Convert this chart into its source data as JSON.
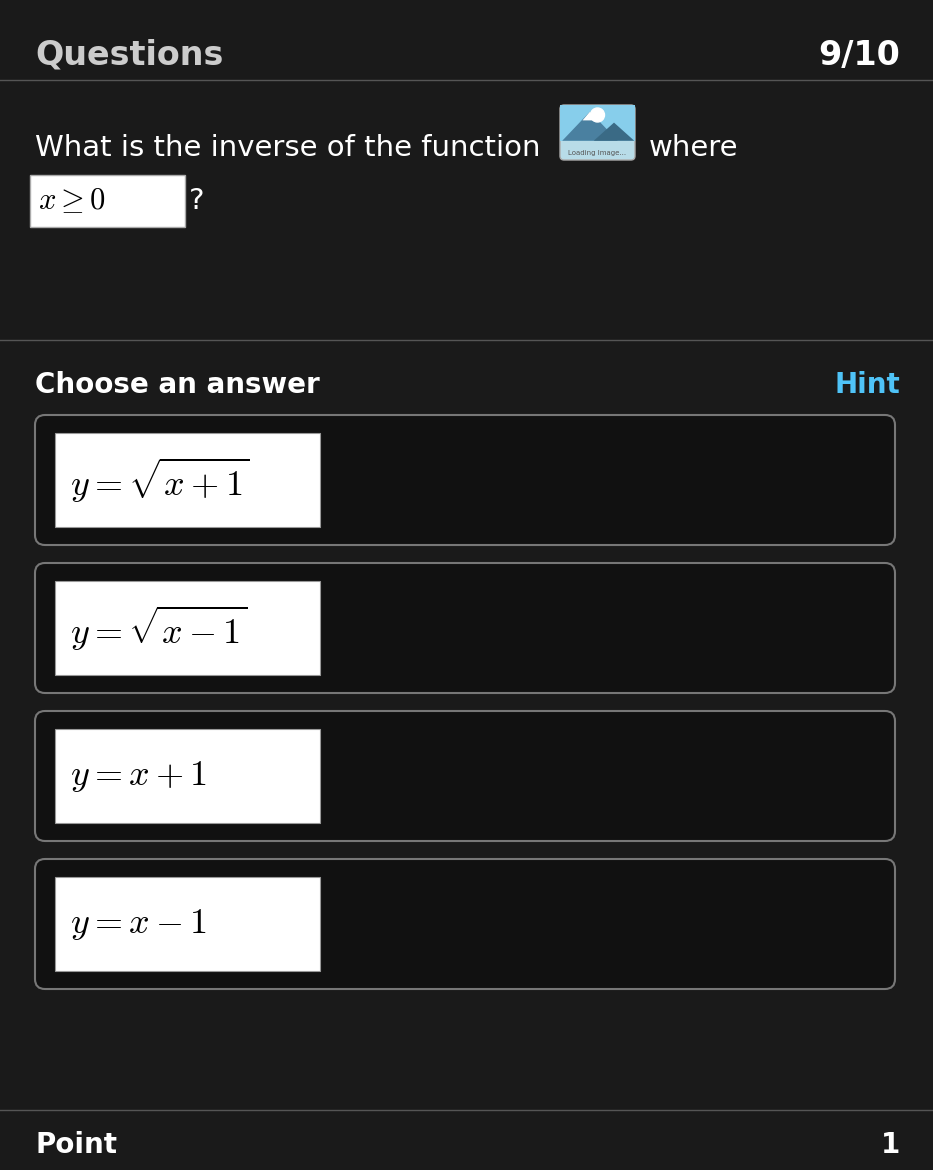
{
  "bg_color": "#1a1a1a",
  "header_text": "Questions",
  "header_number": "9/10",
  "header_font_size": 24,
  "question_text": "What is the inverse of the function",
  "question_font_size": 21,
  "section_label": "Choose an answer",
  "section_label_font_size": 20,
  "hint_text": "Hint",
  "hint_color": "#4fc3f7",
  "answer_formulas": [
    "$y = \\sqrt{x+1}$",
    "$y = \\sqrt{x-1}$",
    "$y = x+1$",
    "$y = x-1$"
  ],
  "answer_font_size": 26,
  "point_label": "Point",
  "point_value": "1",
  "point_font_size": 20,
  "box_edge_color": "#777777",
  "box_bg_color": "#111111",
  "text_color": "#cccccc",
  "divider_color": "#555555"
}
